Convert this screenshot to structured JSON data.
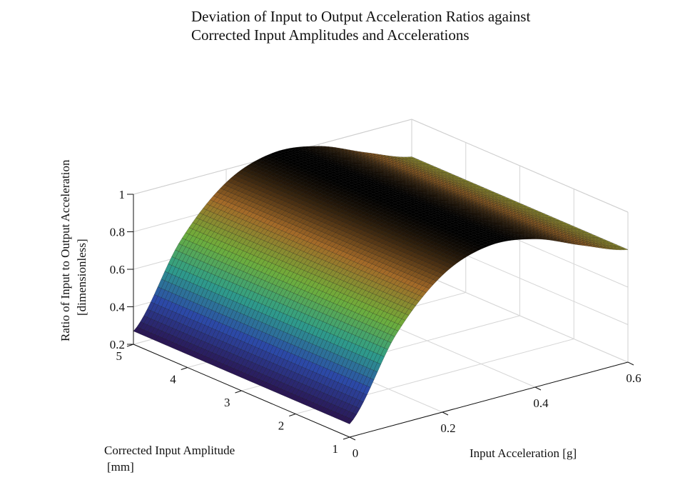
{
  "chart_data": {
    "type": "surface",
    "title": [
      "Deviation of Input to Output Acceleration Ratios against",
      "Corrected Input Amplitudes and Accelerations"
    ],
    "xlabel": "Input Acceleration [g]",
    "ylabel": [
      "Corrected Input Amplitude",
      "[mm]"
    ],
    "zlabel": [
      "Ratio of Input to Output Acceleration",
      "[dimensionless]"
    ],
    "x_ticks": [
      "0",
      "0.2",
      "0.4",
      "0.6"
    ],
    "y_ticks": [
      "1",
      "2",
      "3",
      "4",
      "5"
    ],
    "z_ticks": [
      "0.2",
      "0.4",
      "0.6",
      "0.8",
      "1"
    ],
    "xlim": [
      0,
      0.6
    ],
    "ylim": [
      1,
      5
    ],
    "zlim": [
      0.2,
      1
    ],
    "grid": true,
    "colormap": [
      "#2a1450",
      "#2c4aa8",
      "#2e9e8a",
      "#6fae3a",
      "#a36a28",
      "#000000"
    ],
    "surface_x": [
      0.0,
      0.1,
      0.2,
      0.3,
      0.4,
      0.5,
      0.6
    ],
    "surface_y": [
      1,
      2,
      3,
      4,
      5
    ],
    "surface_z": [
      [
        0.27,
        0.68,
        0.93,
        1.02,
        0.99,
        0.89,
        0.8
      ],
      [
        0.27,
        0.68,
        0.93,
        1.02,
        0.99,
        0.89,
        0.8
      ],
      [
        0.27,
        0.68,
        0.93,
        1.02,
        0.99,
        0.89,
        0.8
      ],
      [
        0.27,
        0.68,
        0.93,
        1.02,
        0.99,
        0.89,
        0.8
      ],
      [
        0.27,
        0.68,
        0.93,
        1.02,
        0.99,
        0.89,
        0.8
      ]
    ]
  }
}
